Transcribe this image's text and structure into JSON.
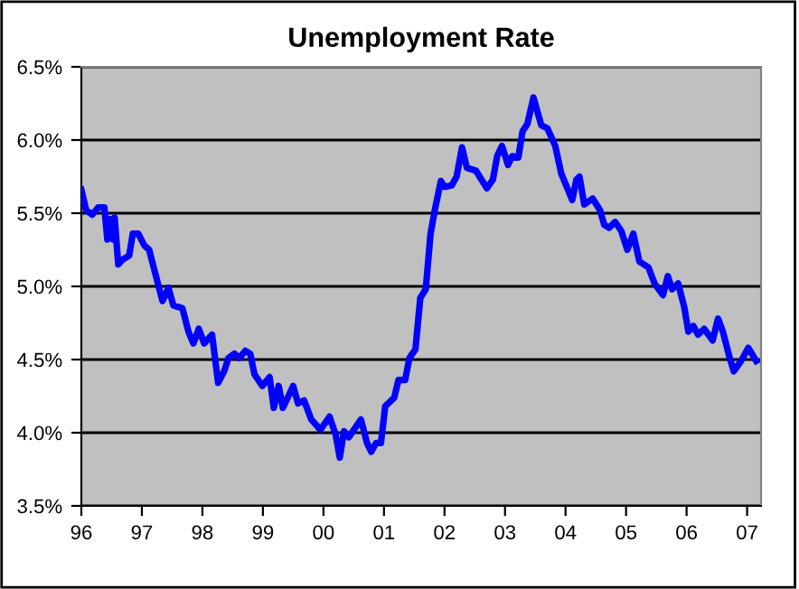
{
  "chart_data": {
    "type": "line",
    "title": "Unemployment Rate",
    "series": [
      {
        "color": "#0000ff",
        "x": [
          1996.0,
          1996.08,
          1996.18,
          1996.28,
          1996.38,
          1996.43,
          1996.48,
          1996.53,
          1996.55,
          1996.61,
          1996.67,
          1996.79,
          1996.85,
          1996.94,
          1997.04,
          1997.12,
          1997.22,
          1997.34,
          1997.44,
          1997.52,
          1997.67,
          1997.77,
          1997.85,
          1997.94,
          1998.03,
          1998.16,
          1998.26,
          1998.36,
          1998.43,
          1998.53,
          1998.61,
          1998.71,
          1998.79,
          1998.86,
          1998.99,
          1999.11,
          1999.18,
          1999.26,
          1999.33,
          1999.5,
          1999.58,
          1999.68,
          1999.8,
          1999.95,
          2000.1,
          2000.2,
          2000.27,
          2000.34,
          2000.42,
          2000.62,
          2000.72,
          2000.79,
          2000.87,
          2000.95,
          2001.02,
          2001.17,
          2001.24,
          2001.35,
          2001.42,
          2001.52,
          2001.6,
          2001.69,
          2001.77,
          2001.84,
          2001.94,
          2002.0,
          2002.12,
          2002.2,
          2002.29,
          2002.37,
          2002.52,
          2002.7,
          2002.8,
          2002.87,
          2002.95,
          2003.05,
          2003.12,
          2003.22,
          2003.29,
          2003.37,
          2003.47,
          2003.6,
          2003.7,
          2003.83,
          2003.93,
          2004.01,
          2004.11,
          2004.18,
          2004.23,
          2004.31,
          2004.45,
          2004.57,
          2004.64,
          2004.72,
          2004.82,
          2004.92,
          2005.02,
          2005.12,
          2005.22,
          2005.37,
          2005.47,
          2005.61,
          2005.69,
          2005.76,
          2005.86,
          2005.96,
          2006.03,
          2006.11,
          2006.19,
          2006.29,
          2006.43,
          2006.52,
          2006.6,
          2006.7,
          2006.78,
          2006.9,
          2007.02,
          2007.15
        ],
        "values": [
          5.66,
          5.52,
          5.49,
          5.54,
          5.54,
          5.32,
          5.46,
          5.32,
          5.47,
          5.15,
          5.18,
          5.21,
          5.36,
          5.36,
          5.28,
          5.25,
          5.09,
          4.9,
          4.99,
          4.87,
          4.85,
          4.69,
          4.61,
          4.71,
          4.61,
          4.67,
          4.34,
          4.42,
          4.51,
          4.54,
          4.51,
          4.56,
          4.54,
          4.4,
          4.32,
          4.38,
          4.17,
          4.32,
          4.17,
          4.32,
          4.2,
          4.22,
          4.09,
          4.02,
          4.11,
          3.99,
          3.83,
          4.01,
          3.97,
          4.09,
          3.93,
          3.87,
          3.93,
          3.93,
          4.18,
          4.24,
          4.36,
          4.36,
          4.51,
          4.57,
          4.92,
          4.98,
          5.36,
          5.52,
          5.72,
          5.68,
          5.69,
          5.75,
          5.95,
          5.81,
          5.79,
          5.67,
          5.73,
          5.89,
          5.96,
          5.83,
          5.89,
          5.88,
          6.06,
          6.11,
          6.29,
          6.1,
          6.08,
          5.96,
          5.77,
          5.69,
          5.59,
          5.73,
          5.75,
          5.56,
          5.6,
          5.52,
          5.42,
          5.4,
          5.44,
          5.38,
          5.25,
          5.36,
          5.17,
          5.13,
          5.02,
          4.94,
          5.07,
          4.98,
          5.02,
          4.86,
          4.69,
          4.73,
          4.67,
          4.71,
          4.63,
          4.78,
          4.69,
          4.53,
          4.42,
          4.49,
          4.58,
          4.49
        ]
      }
    ],
    "xlim": [
      1996,
      2007.23
    ],
    "xticks": [
      {
        "value": 1996,
        "label": "96"
      },
      {
        "value": 1997,
        "label": "97"
      },
      {
        "value": 1998,
        "label": "98"
      },
      {
        "value": 1999,
        "label": "99"
      },
      {
        "value": 2000,
        "label": "00"
      },
      {
        "value": 2001,
        "label": "01"
      },
      {
        "value": 2002,
        "label": "02"
      },
      {
        "value": 2003,
        "label": "03"
      },
      {
        "value": 2004,
        "label": "04"
      },
      {
        "value": 2005,
        "label": "05"
      },
      {
        "value": 2006,
        "label": "06"
      },
      {
        "value": 2007,
        "label": "07"
      }
    ],
    "ylim": [
      3.5,
      6.5
    ],
    "yticks": [
      {
        "value": 3.5,
        "label": "3.5%"
      },
      {
        "value": 4.0,
        "label": "4.0%"
      },
      {
        "value": 4.5,
        "label": "4.5%"
      },
      {
        "value": 5.0,
        "label": "5.0%"
      },
      {
        "value": 5.5,
        "label": "5.5%"
      },
      {
        "value": 6.0,
        "label": "6.0%"
      },
      {
        "value": 6.5,
        "label": "6.5%"
      }
    ],
    "grid": "y",
    "legend": false,
    "marker": "none",
    "line_style": "solid"
  }
}
